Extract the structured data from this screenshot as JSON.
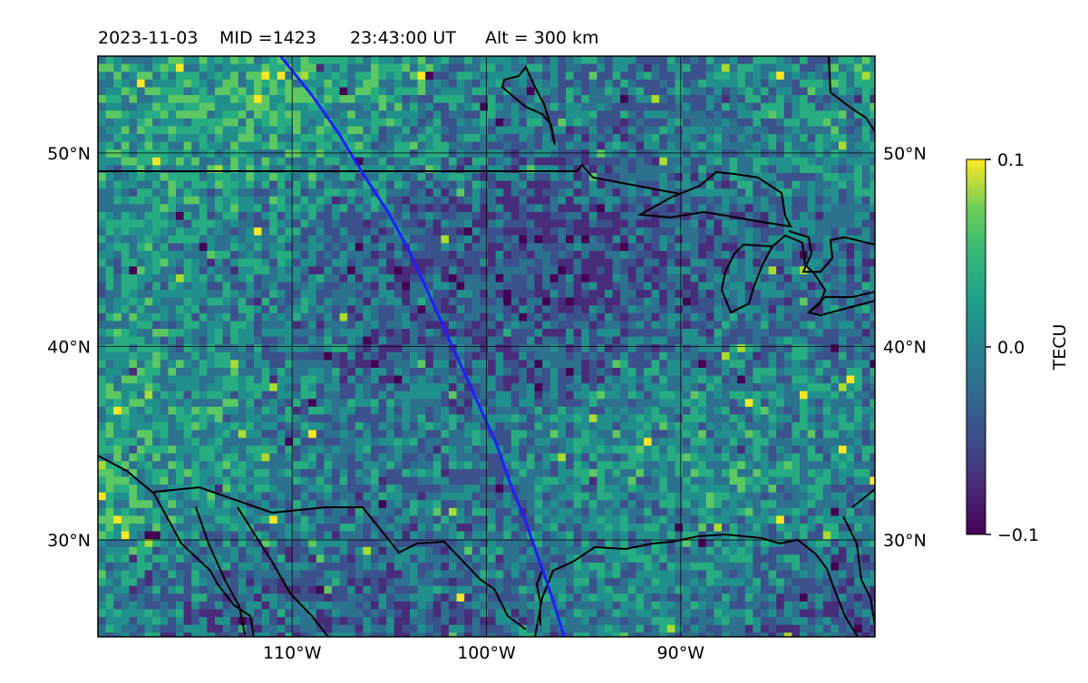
{
  "title": {
    "date": "2023-11-03",
    "mid": "MID =1423",
    "time": "23:43:00  UT",
    "alt": "Alt = 300 km"
  },
  "map": {
    "lon_range": [
      -120,
      -80
    ],
    "lat_range": [
      25,
      55
    ],
    "x_ticks": [
      {
        "lon": -110,
        "label": "110°W"
      },
      {
        "lon": -100,
        "label": "100°W"
      },
      {
        "lon": -90,
        "label": "90°W"
      }
    ],
    "y_ticks": [
      {
        "lat": 50,
        "label": "50°N"
      },
      {
        "lat": 40,
        "label": "40°N"
      },
      {
        "lat": 30,
        "label": "30°N"
      }
    ],
    "gridlines": true,
    "projection": "PlateCarree",
    "field": "TEC perturbation",
    "colormap": "viridis"
  },
  "colorbar": {
    "label": "TECU",
    "min": -0.1,
    "max": 0.1,
    "ticks": [
      {
        "value": 0.1,
        "label": "0.1"
      },
      {
        "value": 0.0,
        "label": "0.0"
      },
      {
        "value": -0.1,
        "label": "−0.1"
      }
    ]
  },
  "satellite_track": {
    "color": "#1f1fff",
    "points": [
      [
        -110.6,
        55
      ],
      [
        -109.0,
        53
      ],
      [
        -107.6,
        51
      ],
      [
        -106.4,
        49
      ],
      [
        -105.1,
        47
      ],
      [
        -104.0,
        45
      ],
      [
        -103.1,
        43
      ],
      [
        -102.2,
        41
      ],
      [
        -101.3,
        39
      ],
      [
        -100.4,
        37
      ],
      [
        -99.5,
        35
      ],
      [
        -98.8,
        33
      ],
      [
        -98.0,
        31
      ],
      [
        -97.3,
        29
      ],
      [
        -96.6,
        27
      ],
      [
        -96.0,
        25
      ]
    ]
  }
}
